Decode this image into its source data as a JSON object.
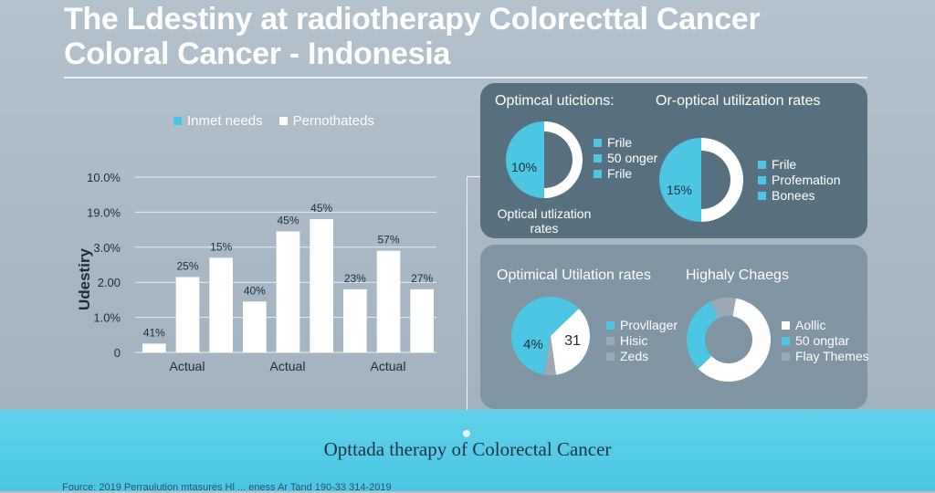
{
  "title": {
    "line1": "The Ldestiny at radiotherapy Colorecttal Cancer",
    "line2": "Coloral Cancer - Indonesia"
  },
  "chart_data": [
    {
      "type": "bar",
      "legend": [
        {
          "label": "Inmet needs",
          "color": "#4cc6e3"
        },
        {
          "label": "Pernothateds",
          "color": "#ffffff"
        }
      ],
      "ylabel": "Udestiry",
      "y_tick_labels": [
        "10.0%",
        "19.0%",
        "3.0%",
        "2.00",
        "1.0%",
        "0"
      ],
      "x_tick_labels": [
        "Actual",
        "Actual",
        "Actual"
      ],
      "ylim": [
        0,
        5
      ],
      "bars": [
        {
          "value": 0.25,
          "label": "41%"
        },
        {
          "value": 2.15,
          "label": "25%"
        },
        {
          "value": 2.7,
          "label": "15%"
        },
        {
          "value": 1.45,
          "label": "40%"
        },
        {
          "value": 3.45,
          "label": "45%"
        },
        {
          "value": 3.8,
          "label": "45%"
        },
        {
          "value": 1.8,
          "label": "23%"
        },
        {
          "value": 2.9,
          "label": "57%"
        },
        {
          "value": 1.8,
          "label": "27%"
        }
      ],
      "grid": true
    },
    {
      "type": "pie",
      "title": "Optimcal utictions:",
      "center_label": "10%",
      "caption": [
        "Optical utlization",
        "rates"
      ],
      "slices": [
        {
          "label": "Frile",
          "value": 50,
          "color": "#4cc6e3"
        },
        {
          "label": "50 onger",
          "value": 50,
          "color": "#ffffff"
        }
      ],
      "legend": [
        {
          "label": "Frile",
          "color": "#4cc6e3"
        },
        {
          "label": "50 onger",
          "color": "#4cc6e3"
        },
        {
          "label": "Frile",
          "color": "#4cc6e3"
        }
      ]
    },
    {
      "type": "pie",
      "title": "Or-optical utilization rates",
      "center_label": "15%",
      "slices": [
        {
          "label": "Frile",
          "value": 50,
          "color": "#4cc6e3"
        },
        {
          "label": "Profemation",
          "value": 50,
          "color": "#ffffff"
        }
      ],
      "legend": [
        {
          "label": "Frile",
          "color": "#4cc6e3"
        },
        {
          "label": "Profemation",
          "color": "#4cc6e3"
        },
        {
          "label": "Bonees",
          "color": "#4cc6e3"
        }
      ]
    },
    {
      "type": "pie",
      "title": "Optimical Utilation rates",
      "slice_labels": [
        "4%",
        "31"
      ],
      "slices": [
        {
          "label": "Provllager",
          "value": 60,
          "color": "#4cc6e3"
        },
        {
          "label": "Hisic",
          "value": 35,
          "color": "#ffffff"
        },
        {
          "label": "Zeds",
          "value": 5,
          "color": "#9aa9b4"
        }
      ],
      "legend": [
        {
          "label": "Provllager",
          "color": "#4cc6e3"
        },
        {
          "label": "Hisic",
          "color": "#9aa9b4"
        },
        {
          "label": "Zeds",
          "color": "#9aa9b4"
        }
      ]
    },
    {
      "type": "pie",
      "title": "Highaly Chaegs",
      "slices": [
        {
          "label": "Aollic",
          "value": 60,
          "color": "#ffffff"
        },
        {
          "label": "50 ongtar",
          "value": 30,
          "color": "#4cc6e3"
        },
        {
          "label": "Flay Themes",
          "value": 10,
          "color": "#9aa9b4"
        }
      ],
      "legend": [
        {
          "label": "Aollic",
          "color": "#ffffff"
        },
        {
          "label": "50 ongtar",
          "color": "#4cc6e3"
        },
        {
          "label": "Flay Themes",
          "color": "#9aa9b4"
        }
      ]
    }
  ],
  "caption": "Opttada therapy of Colorectal Cancer",
  "footnote": "Fource: 2019 Perraulution mtasures Hl ... eness Ar Tand 190-33 314-2019"
}
